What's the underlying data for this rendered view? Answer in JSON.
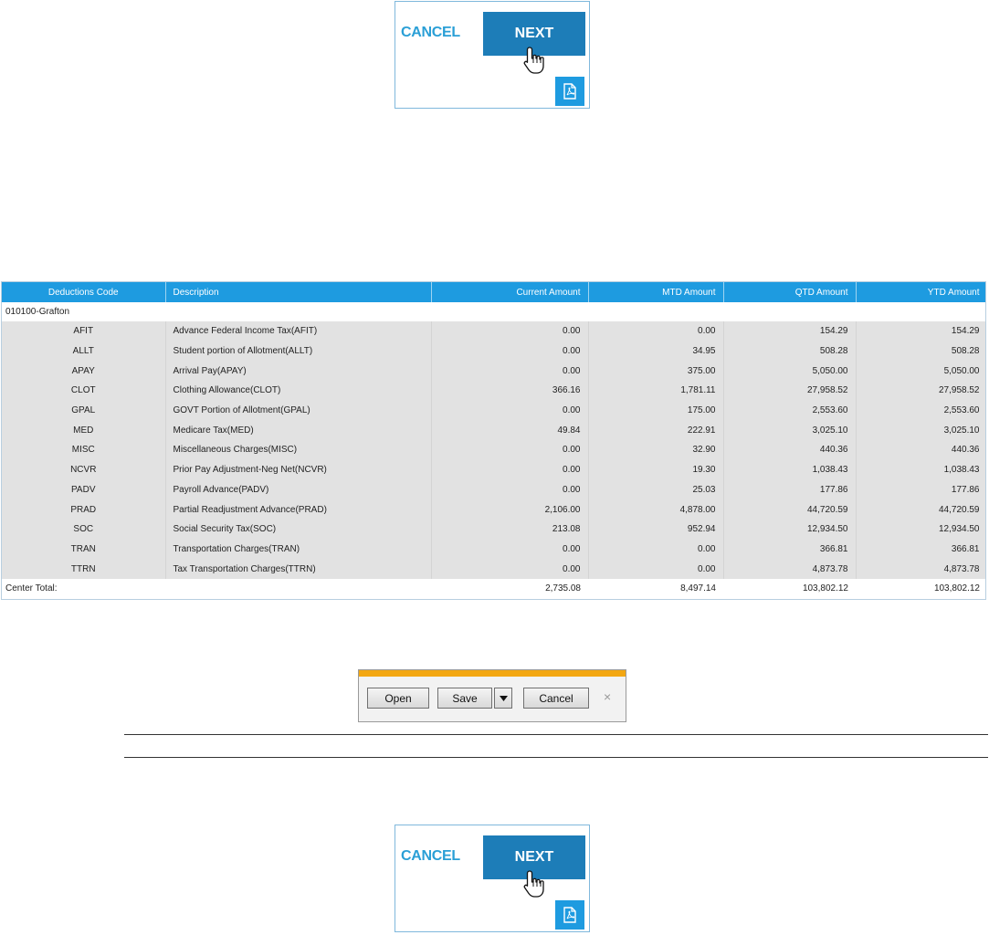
{
  "nav_top": {
    "cancel_label": "CANCEL",
    "next_label": "NEXT",
    "pdf_icon": "pdf-icon"
  },
  "nav_bottom": {
    "cancel_label": "CANCEL",
    "next_label": "NEXT",
    "pdf_icon": "pdf-icon"
  },
  "colors": {
    "accent_blue": "#1e9be0",
    "next_blue": "#1d7db8",
    "row_gray": "#e2e2e2",
    "dialog_accent": "#f3a712"
  },
  "table": {
    "headers": [
      "Deductions Code",
      "Description",
      "Current Amount",
      "MTD Amount",
      "QTD Amount",
      "YTD Amount"
    ],
    "group_label": "010100-Grafton",
    "rows": [
      [
        "AFIT",
        "Advance Federal Income Tax(AFIT)",
        "0.00",
        "0.00",
        "154.29",
        "154.29"
      ],
      [
        "ALLT",
        "Student portion of Allotment(ALLT)",
        "0.00",
        "34.95",
        "508.28",
        "508.28"
      ],
      [
        "APAY",
        "Arrival Pay(APAY)",
        "0.00",
        "375.00",
        "5,050.00",
        "5,050.00"
      ],
      [
        "CLOT",
        "Clothing Allowance(CLOT)",
        "366.16",
        "1,781.11",
        "27,958.52",
        "27,958.52"
      ],
      [
        "GPAL",
        "GOVT Portion of Allotment(GPAL)",
        "0.00",
        "175.00",
        "2,553.60",
        "2,553.60"
      ],
      [
        "MED",
        "Medicare Tax(MED)",
        "49.84",
        "222.91",
        "3,025.10",
        "3,025.10"
      ],
      [
        "MISC",
        "Miscellaneous Charges(MISC)",
        "0.00",
        "32.90",
        "440.36",
        "440.36"
      ],
      [
        "NCVR",
        "Prior Pay Adjustment-Neg Net(NCVR)",
        "0.00",
        "19.30",
        "1,038.43",
        "1,038.43"
      ],
      [
        "PADV",
        "Payroll Advance(PADV)",
        "0.00",
        "25.03",
        "177.86",
        "177.86"
      ],
      [
        "PRAD",
        "Partial Readjustment Advance(PRAD)",
        "2,106.00",
        "4,878.00",
        "44,720.59",
        "44,720.59"
      ],
      [
        "SOC",
        "Social Security Tax(SOC)",
        "213.08",
        "952.94",
        "12,934.50",
        "12,934.50"
      ],
      [
        "TRAN",
        "Transportation Charges(TRAN)",
        "0.00",
        "0.00",
        "366.81",
        "366.81"
      ],
      [
        "TTRN",
        "Tax Transportation Charges(TTRN)",
        "0.00",
        "0.00",
        "4,873.78",
        "4,873.78"
      ]
    ],
    "total": {
      "label": "Center Total:",
      "current": "2,735.08",
      "mtd": "8,497.14",
      "qtd": "103,802.12",
      "ytd": "103,802.12"
    }
  },
  "download_bar": {
    "open_label": "Open",
    "save_label": "Save",
    "cancel_label": "Cancel",
    "close_glyph": "×"
  }
}
